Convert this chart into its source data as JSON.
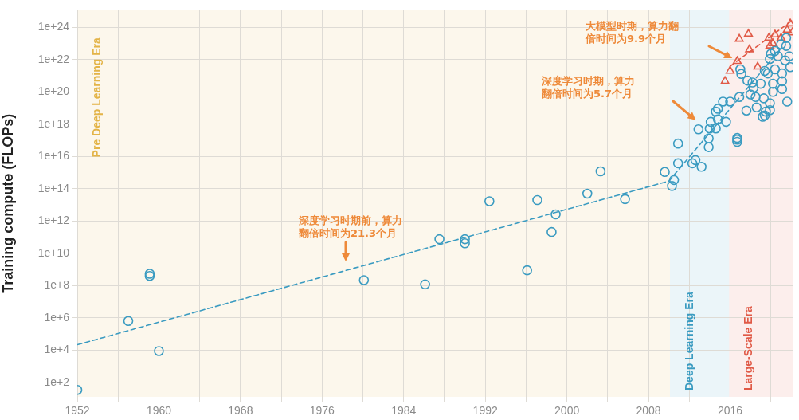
{
  "chart_data": {
    "type": "scatter",
    "ylabel": "Training compute (FLOPs)",
    "xlim": [
      1952,
      2022.2
    ],
    "ylim": [
      13,
      1.2e+25
    ],
    "log": "y",
    "grid": true,
    "legend": false,
    "xticks": [
      {
        "value": 1952,
        "label": "1952"
      },
      {
        "value": 1956,
        "label": null
      },
      {
        "value": 1960,
        "label": "1960"
      },
      {
        "value": 1964,
        "label": null
      },
      {
        "value": 1968,
        "label": "1968"
      },
      {
        "value": 1972,
        "label": null
      },
      {
        "value": 1976,
        "label": "1976"
      },
      {
        "value": 1980,
        "label": null
      },
      {
        "value": 1984,
        "label": "1984"
      },
      {
        "value": 1988,
        "label": null
      },
      {
        "value": 1992,
        "label": "1992"
      },
      {
        "value": 1996,
        "label": null
      },
      {
        "value": 2000,
        "label": "2000"
      },
      {
        "value": 2004,
        "label": null
      },
      {
        "value": 2008,
        "label": "2008"
      },
      {
        "value": 2012,
        "label": null
      },
      {
        "value": 2016,
        "label": "2016"
      },
      {
        "value": 2020,
        "label": null
      }
    ],
    "yticks": [
      {
        "value": 100.0,
        "label": "1e+2"
      },
      {
        "value": 10000.0,
        "label": "1e+4"
      },
      {
        "value": 1000000.0,
        "label": "1e+6"
      },
      {
        "value": 100000000.0,
        "label": "1e+8"
      },
      {
        "value": 10000000000.0,
        "label": "1e+10"
      },
      {
        "value": 1000000000000.0,
        "label": "1e+12"
      },
      {
        "value": 100000000000000.0,
        "label": "1e+14"
      },
      {
        "value": 1e+16,
        "label": "1e+16"
      },
      {
        "value": 1e+18,
        "label": "1e+18"
      },
      {
        "value": 1e+20,
        "label": "1e+20"
      },
      {
        "value": 1e+22,
        "label": "1e+22"
      },
      {
        "value": 1e+24,
        "label": "1e+24"
      }
    ],
    "bands": [
      {
        "axis": "x",
        "from": 1952,
        "to": 2010.1,
        "label": "Pre Deep Learning Era",
        "color": "#e3b448"
      },
      {
        "axis": "x",
        "from": 2010.1,
        "to": 2015.9,
        "label": "Deep Learning Era",
        "color": "#3a9bc1"
      },
      {
        "axis": "x",
        "from": 2015.9,
        "to": 2022.2,
        "label": "Large-Scale Era",
        "color": "#e05a47"
      }
    ],
    "series": [
      {
        "type": "scatter",
        "marker": "circle",
        "color": "#3a9bc1",
        "x": [
          1952.0,
          1957.0,
          1959.1,
          1959.1,
          1960.0,
          1980.1,
          1986.1,
          1987.5,
          1990.0,
          1990.0,
          1992.4,
          1996.1,
          1997.1,
          1998.5,
          1998.9,
          2002.0,
          2003.3,
          2005.7,
          2010.3,
          2010.5,
          2009.6,
          2010.9,
          2010.9,
          2012.3,
          2012.6,
          2013.2,
          2012.9,
          2013.9,
          2013.9,
          2014.0,
          2014.1,
          2014.6,
          2014.8,
          2014.6,
          2014.8,
          2015.3,
          2015.6,
          2016.0,
          2016.7,
          2016.7,
          2016.7,
          2016.9,
          2017.0,
          2017.1,
          2017.7,
          2017.6,
          2018.0,
          2018.3,
          2018.2,
          2018.5,
          2018.6,
          2019.0,
          2019.3,
          2019.2,
          2019.4,
          2019.5,
          2019.9,
          2019.9,
          2019.4,
          2019.7,
          2020.2,
          2020.2,
          2020.4,
          2019.9,
          2020.4,
          2020.7,
          2021.1,
          2021.1,
          2021.1,
          2021.5,
          2021.6,
          2021.4,
          2021.8,
          2021.9,
          2021.5,
          2021.0,
          2020.0
        ],
        "values": [
          35.0,
          650000.0,
          550000000.0,
          400000000.0,
          9000.0,
          220000000.0,
          120000000.0,
          76000000000.0,
          76000000000.0,
          42000000000.0,
          17000000000000.0,
          900000000.0,
          20000000000000.0,
          210000000000.0,
          2600000000000.0,
          50000000000000.0,
          1200000000000000.0,
          23000000000000.0,
          150000000000000.0,
          350000000000000.0,
          1100000000000000.0,
          3800000000000000.0,
          6.3e+16,
          3800000000000000.0,
          6000000000000000.0,
          2300000000000000.0,
          4.8e+17,
          3.8e+16,
          1.3e+17,
          5.4e+17,
          1.4e+18,
          5.4e+17,
          2e+18,
          6e+18,
          9e+18,
          2.5e+19,
          1.4e+18,
          2.5e+19,
          1.4e+17,
          1.1e+17,
          8e+16,
          4.8e+19,
          2.5e+21,
          1.3e+21,
          5e+20,
          7e+18,
          7e+19,
          1.8e+20,
          3.8e+20,
          4.8e+19,
          1.1e+19,
          3.2e+20,
          4e+19,
          2.9e+18,
          3.5e+18,
          6e+18,
          2e+19,
          7.4e+18,
          2e+21,
          1.4e+21,
          3.2e+20,
          1e+20,
          2.5e+21,
          1.1e+22,
          3.4e+22,
          1.6e+22,
          1.4e+21,
          4.6e+20,
          1.5e+20,
          7e+22,
          2.5e+19,
          9e+21,
          1.6e+22,
          3.4e+21,
          2.2e+23,
          8.7e+22,
          2.3e+22
        ]
      },
      {
        "type": "scatter",
        "marker": "triangle",
        "color": "#e05a47",
        "x": [
          2015.5,
          2016.0,
          2016.7,
          2016.9,
          2017.8,
          2017.9,
          2018.7,
          2019.8,
          2020.4,
          2021.0,
          2019.9,
          2020.2,
          2021.9,
          2021.6,
          2022.1
        ],
        "values": [
          4.6e+20,
          2e+21,
          8e+21,
          1.9e+23,
          3.9e+23,
          4.2e+22,
          3.6e+21,
          2.2e+23,
          3.5e+23,
          2.2e+23,
          7.2e+22,
          1e+23,
          1.7e+24,
          6.9e+23,
          4.7e+23
        ]
      },
      {
        "type": "line",
        "marker": "none",
        "line_style": "dashed",
        "color": "#3a9bc1",
        "x": [
          1952,
          2010
        ],
        "values": [
          22000.0,
          300000000000000.0
        ]
      },
      {
        "type": "line",
        "marker": "none",
        "line_style": "dashed",
        "color": "#3a9bc1",
        "x": [
          2010,
          2021
        ],
        "values": [
          300000000000000.0,
          5e+22
        ]
      },
      {
        "type": "line",
        "marker": "none",
        "line_style": "dashed",
        "color": "#e05a47",
        "x": [
          2016,
          2022.2
        ],
        "values": [
          3.9e+21,
          3e+24
        ]
      }
    ],
    "annotations": [
      "深度学习时期前，算力翻倍时间为21.3个月",
      "深度学习时期，算力翻倍时间为5.7个月",
      "大模型时期，算力翻倍时间为9.9个月"
    ]
  }
}
